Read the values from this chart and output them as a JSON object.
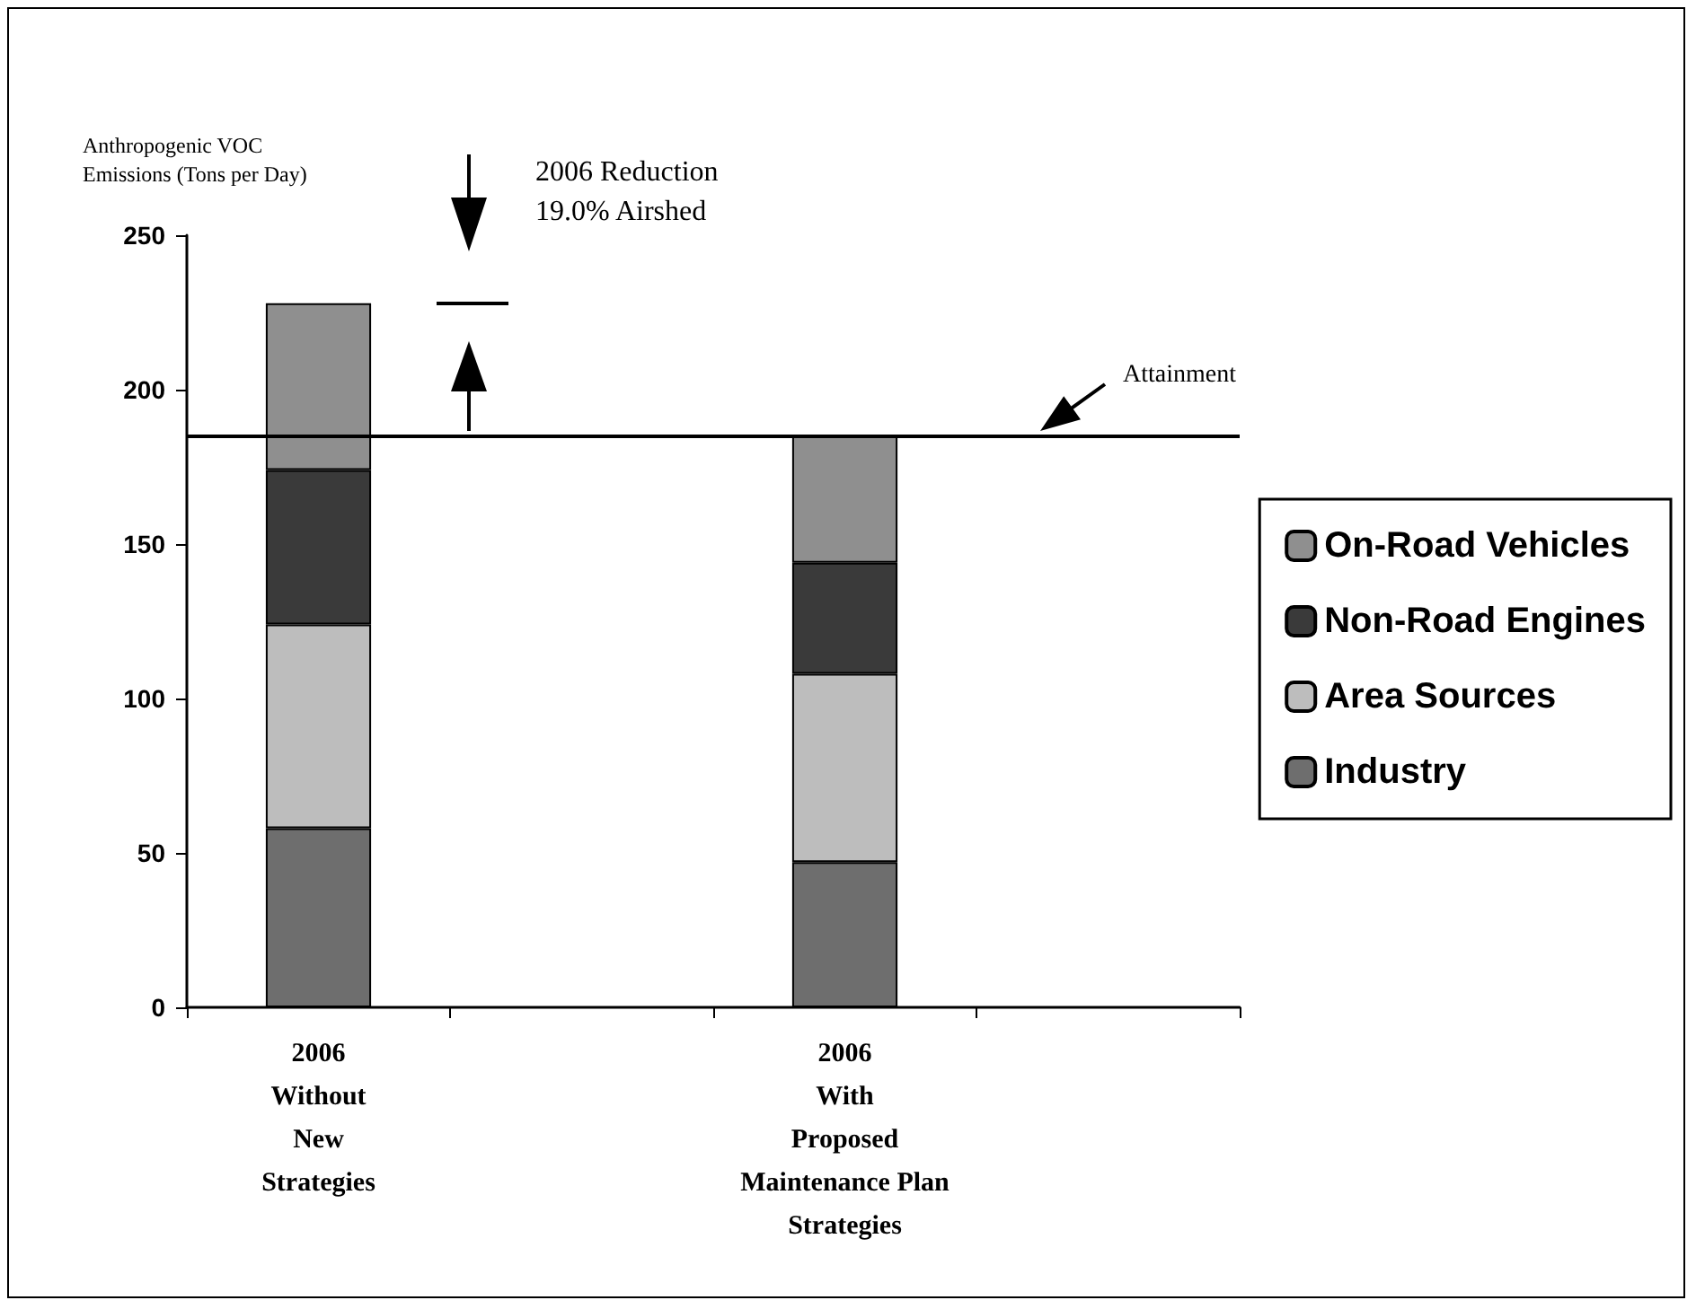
{
  "chart_data": {
    "type": "bar",
    "ylabel": "Anthropogenic VOC\nEmissions (Tons per Day)",
    "categories": [
      "2006\nWithout\nNew\nStrategies",
      null,
      "2006\nWith\nProposed\nMaintenance Plan\nStrategies",
      null
    ],
    "stacked": true,
    "series": [
      {
        "name": "Industry",
        "color": "#6e6e6e",
        "values": [
          58,
          null,
          47,
          null
        ]
      },
      {
        "name": "Area Sources",
        "color": "#bdbdbd",
        "values": [
          66,
          null,
          61,
          null
        ]
      },
      {
        "name": "Non-Road Engines",
        "color": "#3a3a3a",
        "values": [
          50,
          null,
          36,
          null
        ]
      },
      {
        "name": "On-Road Vehicles",
        "color": "#8f8f8f",
        "values": [
          54,
          null,
          41,
          null
        ]
      }
    ],
    "ylim": [
      0,
      250
    ],
    "yticks": [
      0,
      50,
      100,
      150,
      200,
      250
    ],
    "grid": false,
    "legend": "right",
    "ref_lines": [
      {
        "axis": "y",
        "value": 185,
        "label": "Attainment",
        "color": "#000000"
      }
    ],
    "annotations": [
      "2006 Reduction",
      "19.0% Airshed"
    ]
  }
}
